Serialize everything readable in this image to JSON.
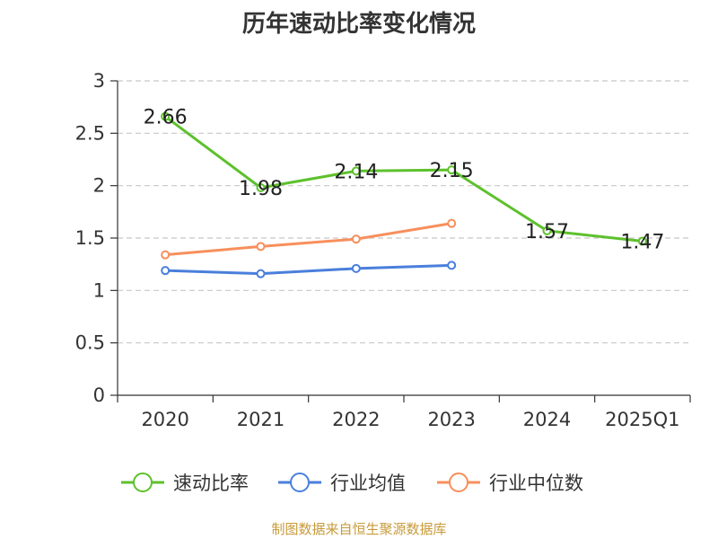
{
  "chart_data": {
    "type": "line",
    "title": "历年速动比率变化情况",
    "categories": [
      "2020",
      "2021",
      "2022",
      "2023",
      "2024",
      "2025Q1"
    ],
    "y_ticks": [
      "0",
      "0.5",
      "1",
      "1.5",
      "2",
      "2.5",
      "3"
    ],
    "ylim": [
      0,
      3
    ],
    "grid": true,
    "legend_position": "bottom",
    "series": [
      {
        "name": "速动比率",
        "color": "#5dc12c",
        "values": [
          2.66,
          1.98,
          2.14,
          2.15,
          1.57,
          1.47
        ],
        "labels": [
          "2.66",
          "1.98",
          "2.14",
          "2.15",
          "1.57",
          "1.47"
        ]
      },
      {
        "name": "行业均值",
        "color": "#4a7fdc",
        "values": [
          1.19,
          1.16,
          1.21,
          1.24,
          null,
          null
        ],
        "labels": []
      },
      {
        "name": "行业中位数",
        "color": "#f78f5c",
        "values": [
          1.34,
          1.42,
          1.49,
          1.64,
          null,
          null
        ],
        "labels": []
      }
    ]
  },
  "source": "制图数据来自恒生聚源数据库"
}
